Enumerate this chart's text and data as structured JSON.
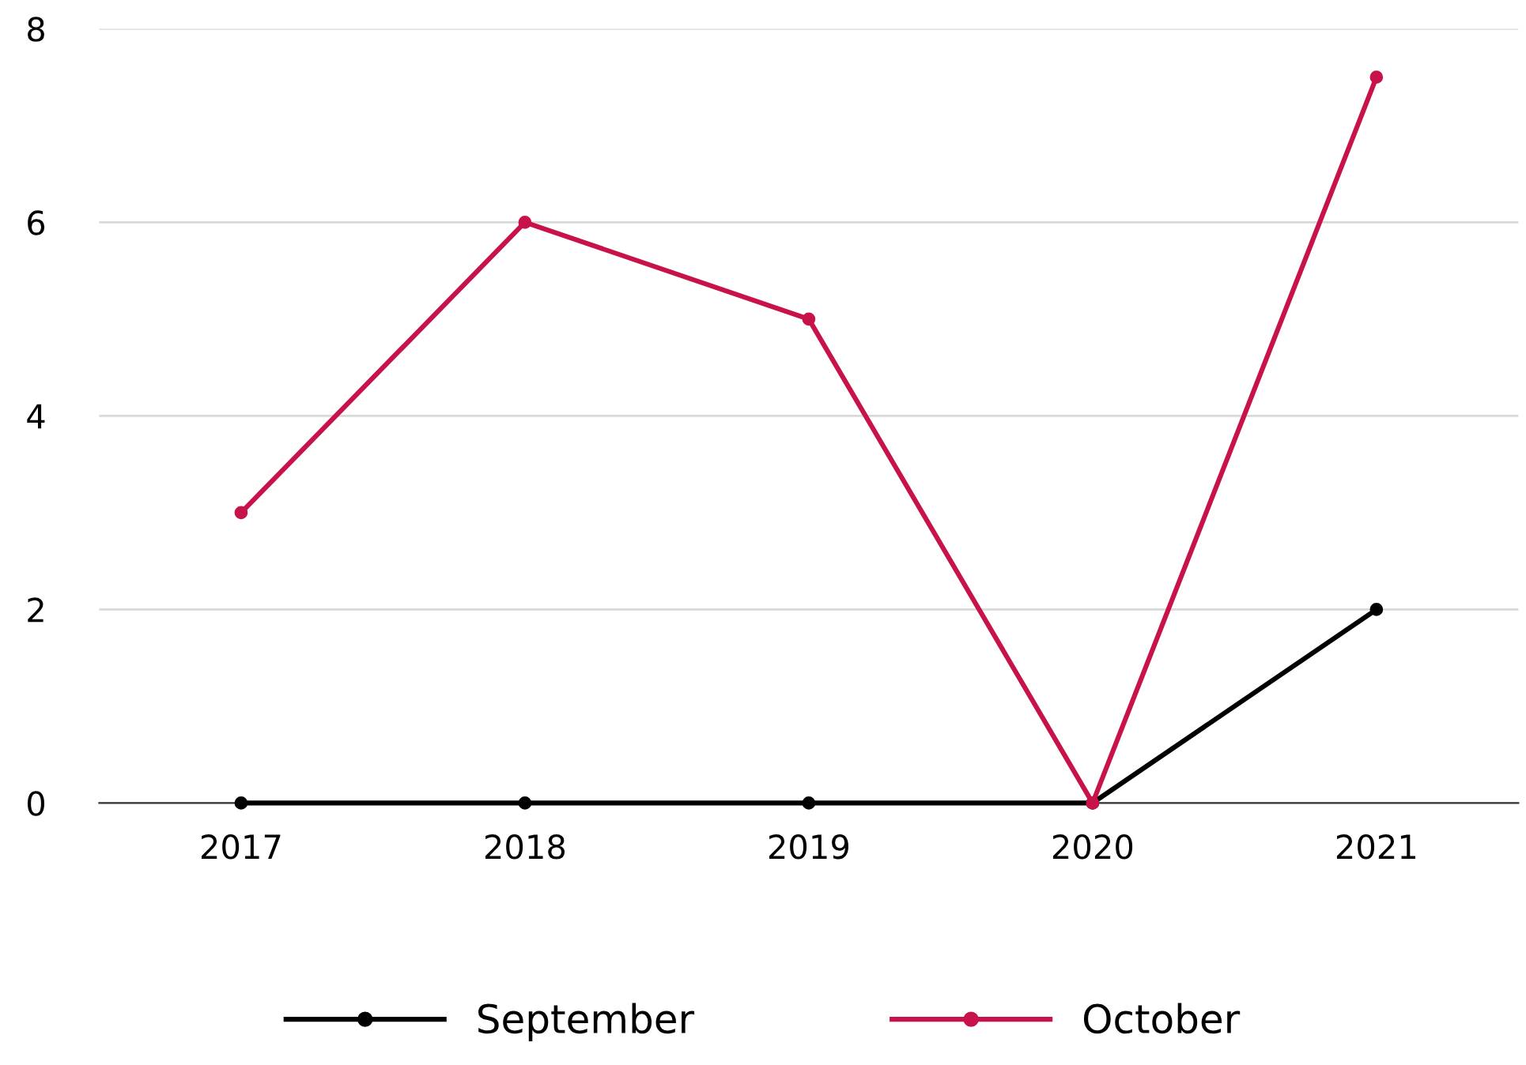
{
  "chart_data": {
    "type": "line",
    "categories": [
      "2017",
      "2018",
      "2019",
      "2020",
      "2021"
    ],
    "series": [
      {
        "name": "September",
        "color": "#000000",
        "values": [
          0,
          0,
          0,
          0,
          2
        ]
      },
      {
        "name": "October",
        "color": "#c8134a",
        "values": [
          3,
          6,
          5,
          0,
          7.5
        ]
      }
    ],
    "ylim": [
      0,
      8
    ],
    "yticks": [
      0,
      2,
      4,
      6,
      8
    ],
    "grid": "y",
    "legend": "bottom",
    "marker": "circle",
    "line_style": "solid"
  }
}
